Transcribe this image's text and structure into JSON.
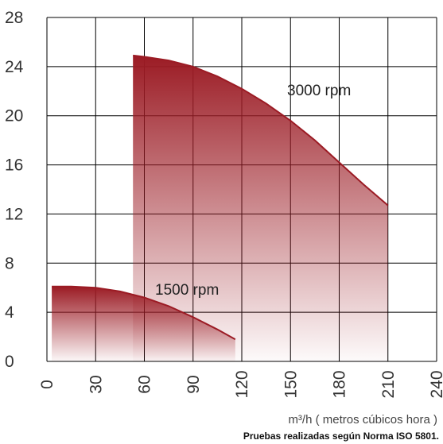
{
  "chart_data": {
    "type": "area",
    "x_ticks": [
      "0",
      "30",
      "60",
      "90",
      "120",
      "150",
      "180",
      "210",
      "240"
    ],
    "y_ticks": [
      "0",
      "4",
      "8",
      "12",
      "16",
      "20",
      "24",
      "28"
    ],
    "xlim": [
      0,
      240
    ],
    "ylim": [
      0,
      28
    ],
    "grid": true,
    "xlabel": "m³/h ( metros cúbicos hora )",
    "footnote": "Pruebas realizadas según Norma ISO 5801.",
    "series": [
      {
        "name": "3000 rpm",
        "x": [
          53,
          60,
          75,
          90,
          105,
          120,
          135,
          150,
          165,
          180,
          195,
          210
        ],
        "y": [
          24.9,
          24.8,
          24.5,
          24.0,
          23.2,
          22.2,
          21.0,
          19.6,
          18.0,
          16.2,
          14.4,
          12.7
        ],
        "color": "#9b1b24"
      },
      {
        "name": "1500 rpm",
        "x": [
          3,
          15,
          30,
          45,
          60,
          75,
          90,
          105,
          116
        ],
        "y": [
          6.1,
          6.1,
          6.0,
          5.7,
          5.2,
          4.5,
          3.6,
          2.6,
          1.8
        ],
        "color": "#9b1b24"
      }
    ]
  }
}
